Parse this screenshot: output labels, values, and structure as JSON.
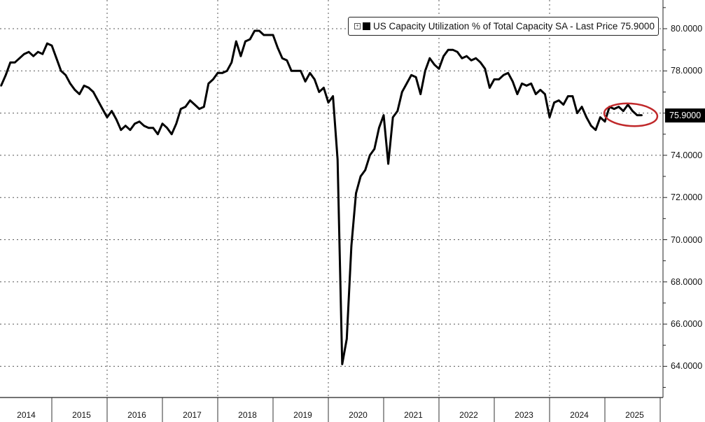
{
  "chart_data": {
    "type": "line",
    "title": "US Capacity Utilization % of Total Capacity SA",
    "legend": {
      "label": "US Capacity Utilization % of Total Capacity SA - Last Price 75.9000",
      "placement": "top-right"
    },
    "last_price_label": "75.9000",
    "last_price": 75.9,
    "ylim": [
      62.5,
      81.5
    ],
    "y_ticks": [
      {
        "value": 80,
        "label": "80.0000"
      },
      {
        "value": 78,
        "label": "78.0000"
      },
      {
        "value": 74,
        "label": "74.0000"
      },
      {
        "value": 72,
        "label": "72.0000"
      },
      {
        "value": 70,
        "label": "70.0000"
      },
      {
        "value": 68,
        "label": "68.0000"
      },
      {
        "value": 66,
        "label": "66.0000"
      },
      {
        "value": 64,
        "label": "64.0000"
      }
    ],
    "x_ticks": [
      "2014",
      "2015",
      "2016",
      "2017",
      "2018",
      "2019",
      "2020",
      "2021",
      "2022",
      "2023",
      "2024",
      "2025"
    ],
    "grid": true,
    "start": "2014-02",
    "frequency": "monthly",
    "series": [
      {
        "name": "US Capacity Utilization % of Total Capacity SA",
        "color": "#000000",
        "values": [
          77.3,
          77.8,
          78.4,
          78.4,
          78.6,
          78.8,
          78.9,
          78.7,
          78.9,
          78.8,
          79.3,
          79.2,
          78.6,
          78.0,
          77.8,
          77.4,
          77.1,
          76.9,
          77.3,
          77.2,
          77.0,
          76.6,
          76.2,
          75.8,
          76.1,
          75.7,
          75.2,
          75.4,
          75.2,
          75.5,
          75.6,
          75.4,
          75.3,
          75.3,
          75.0,
          75.5,
          75.3,
          75.0,
          75.5,
          76.2,
          76.3,
          76.6,
          76.4,
          76.2,
          76.3,
          77.4,
          77.6,
          77.9,
          77.9,
          78.0,
          78.4,
          79.4,
          78.7,
          79.4,
          79.5,
          79.9,
          79.9,
          79.7,
          79.7,
          79.7,
          79.1,
          78.6,
          78.5,
          78.0,
          78.0,
          78.0,
          77.5,
          77.9,
          77.6,
          77.0,
          77.2,
          76.5,
          76.8,
          73.8,
          64.1,
          65.3,
          69.7,
          72.2,
          73.0,
          73.3,
          74.0,
          74.3,
          75.3,
          75.9,
          73.6,
          75.8,
          76.1,
          77.0,
          77.4,
          77.8,
          77.7,
          76.9,
          78.0,
          78.6,
          78.3,
          78.1,
          78.7,
          79.0,
          79.0,
          78.9,
          78.6,
          78.7,
          78.5,
          78.6,
          78.4,
          78.1,
          77.2,
          77.6,
          77.6,
          77.8,
          77.9,
          77.5,
          76.9,
          77.4,
          77.3,
          77.4,
          76.9,
          77.1,
          76.9,
          75.8,
          76.5,
          76.6,
          76.4,
          76.8,
          76.8,
          76.0,
          76.3,
          75.8,
          75.4,
          75.2,
          75.8,
          75.6,
          76.3,
          76.2,
          76.3,
          76.1,
          76.4,
          76.1,
          75.9,
          75.9
        ]
      }
    ],
    "annotation": {
      "type": "ellipse",
      "color": "#c0282a",
      "target": "2025 recent values"
    }
  }
}
